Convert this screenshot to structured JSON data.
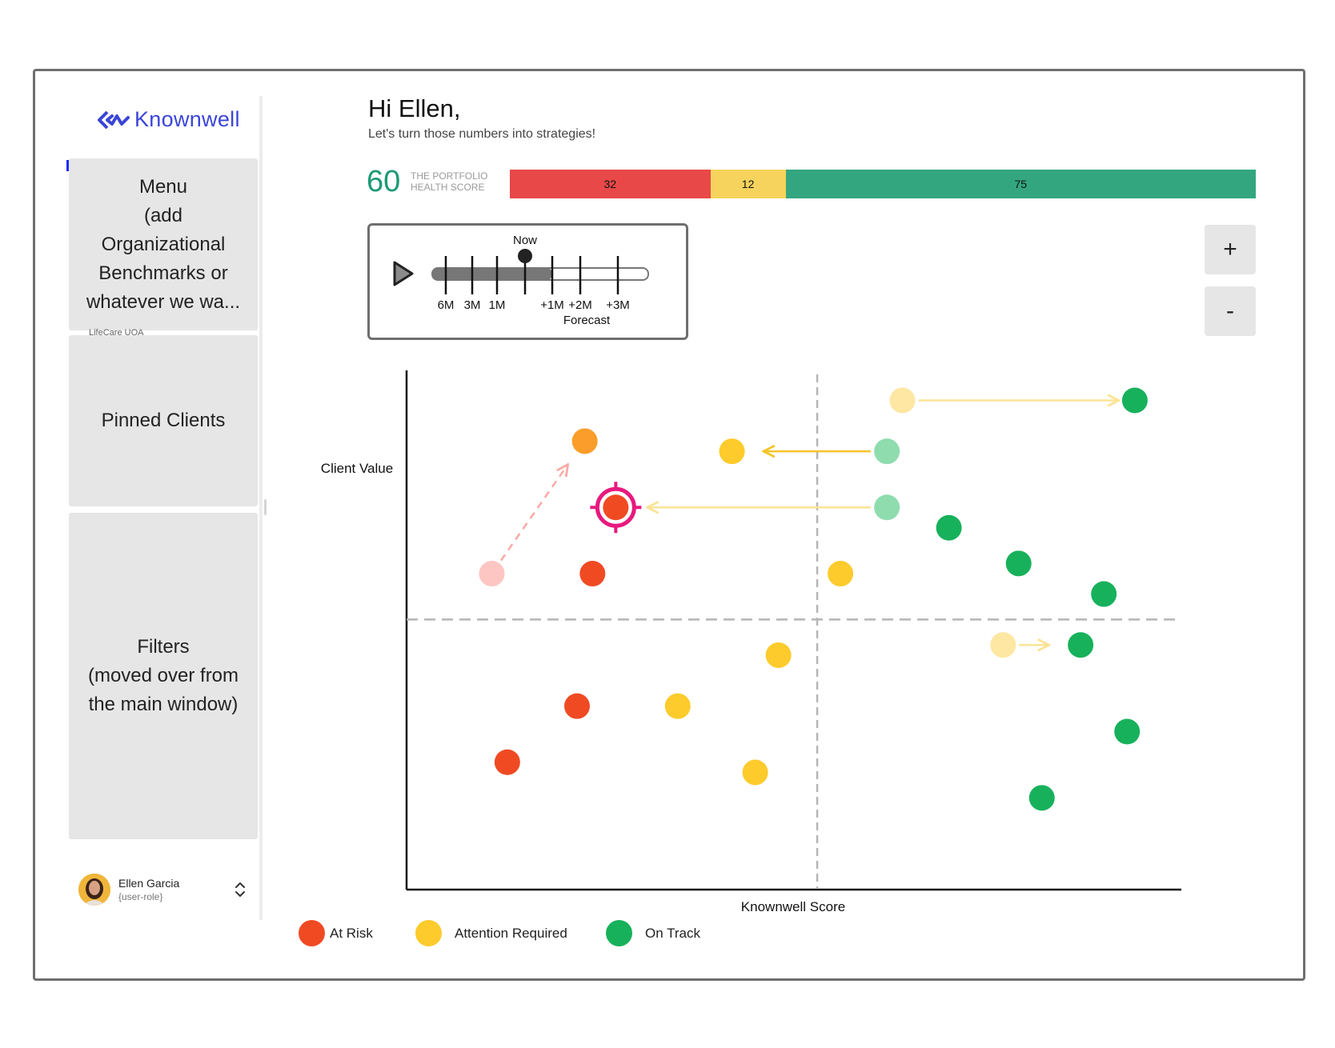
{
  "app": {
    "brand": "Knownwell"
  },
  "sidebar": {
    "menu_panel": "Menu\n(add\nOrganizational\nBenchmarks or\nwhatever we wa...",
    "peek_text": "LifeCare UOA",
    "pinned_panel": "Pinned Clients",
    "filters_panel": "Filters\n(moved over from\nthe main window)",
    "user": {
      "name": "Ellen Garcia",
      "role": "{user-role}"
    }
  },
  "header": {
    "greeting": "Hi Ellen,",
    "subtitle": "Let's turn those numbers into strategies!"
  },
  "health": {
    "score": "60",
    "label": "THE PORTFOLIO HEALTH SCORE",
    "segments": [
      {
        "value": 32,
        "color": "#e84848"
      },
      {
        "value": 12,
        "color": "#f5d35c"
      },
      {
        "value": 75,
        "color": "#33a680"
      }
    ]
  },
  "timeline": {
    "now_label": "Now",
    "past_labels": [
      "6M",
      "3M",
      "1M"
    ],
    "future_labels": [
      "+1M",
      "+2M",
      "+3M"
    ],
    "forecast_label": "Forecast",
    "position": "Now"
  },
  "zoom": {
    "in_label": "+",
    "out_label": "-"
  },
  "colors": {
    "at_risk": "#f04a23",
    "attention": "#fdcb2b",
    "on_track": "#17b15b",
    "selection": "#e8197e"
  },
  "chart_data": {
    "type": "scatter",
    "title": "",
    "xlabel": "Knownwell Score",
    "ylabel": "Client Value",
    "xlim": [
      0,
      100
    ],
    "ylim": [
      0,
      100
    ],
    "x_threshold": 53,
    "y_threshold": 53,
    "legend": [
      "At Risk",
      "Attention Required",
      "On Track"
    ],
    "points": [
      {
        "x": 64,
        "y": 96,
        "status": "attention",
        "faded": true
      },
      {
        "x": 94,
        "y": 96,
        "status": "on_track"
      },
      {
        "x": 23,
        "y": 88,
        "status": "attention-orange"
      },
      {
        "x": 42,
        "y": 86,
        "status": "attention"
      },
      {
        "x": 62,
        "y": 86,
        "status": "on_track",
        "faded": true
      },
      {
        "x": 27,
        "y": 75,
        "status": "at_risk",
        "selected": true
      },
      {
        "x": 62,
        "y": 75,
        "status": "on_track",
        "faded": true
      },
      {
        "x": 70,
        "y": 71,
        "status": "on_track"
      },
      {
        "x": 11,
        "y": 62,
        "status": "at_risk",
        "faded": true
      },
      {
        "x": 24,
        "y": 62,
        "status": "at_risk"
      },
      {
        "x": 56,
        "y": 62,
        "status": "attention"
      },
      {
        "x": 79,
        "y": 64,
        "status": "on_track"
      },
      {
        "x": 90,
        "y": 58,
        "status": "on_track"
      },
      {
        "x": 77,
        "y": 48,
        "status": "attention",
        "faded": true
      },
      {
        "x": 87,
        "y": 48,
        "status": "on_track"
      },
      {
        "x": 48,
        "y": 46,
        "status": "attention"
      },
      {
        "x": 22,
        "y": 36,
        "status": "at_risk"
      },
      {
        "x": 35,
        "y": 36,
        "status": "attention"
      },
      {
        "x": 13,
        "y": 25,
        "status": "at_risk"
      },
      {
        "x": 45,
        "y": 23,
        "status": "attention"
      },
      {
        "x": 93,
        "y": 31,
        "status": "on_track"
      },
      {
        "x": 82,
        "y": 18,
        "status": "on_track"
      }
    ],
    "movements": [
      {
        "from": [
          64,
          96
        ],
        "to": [
          94,
          96
        ],
        "style": "solid-light-yellow"
      },
      {
        "from": [
          62,
          86
        ],
        "to": [
          44,
          86
        ],
        "style": "solid-yellow"
      },
      {
        "from": [
          62,
          75
        ],
        "to": [
          29,
          75
        ],
        "style": "solid-light-yellow"
      },
      {
        "from": [
          11,
          62
        ],
        "to": [
          22,
          86
        ],
        "style": "dashed-pink"
      },
      {
        "from": [
          77,
          48
        ],
        "to": [
          85,
          48
        ],
        "style": "solid-light-yellow"
      }
    ]
  },
  "legend": {
    "at_risk": "At Risk",
    "attention": "Attention Required",
    "on_track": "On Track"
  }
}
